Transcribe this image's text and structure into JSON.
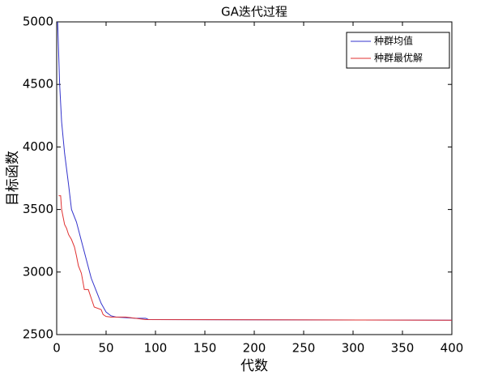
{
  "chart_data": {
    "type": "line",
    "title": "GA迭代过程",
    "x_label": "代数",
    "y_label": "目标函数",
    "series": [
      {
        "name": "种群均值",
        "color": "#3333cc",
        "x": [
          1,
          3,
          5,
          8,
          12,
          15,
          20,
          25,
          30,
          35,
          40,
          45,
          50,
          55,
          60,
          80,
          90,
          93,
          100,
          400
        ],
        "values": [
          5000,
          4500,
          4200,
          3950,
          3700,
          3500,
          3400,
          3250,
          3100,
          2950,
          2850,
          2750,
          2680,
          2650,
          2640,
          2630,
          2630,
          2620,
          2620,
          2615
        ]
      },
      {
        "name": "种群最优解",
        "color": "#e03030",
        "x": [
          2,
          4,
          5,
          8,
          10,
          12,
          15,
          18,
          20,
          22,
          25,
          28,
          32,
          35,
          38,
          45,
          47,
          50,
          55,
          70,
          90,
          400
        ],
        "values": [
          3610,
          3610,
          3500,
          3380,
          3350,
          3300,
          3260,
          3200,
          3130,
          3050,
          2990,
          2860,
          2860,
          2790,
          2720,
          2700,
          2660,
          2645,
          2640,
          2640,
          2620,
          2615
        ]
      }
    ],
    "xlim": [
      0,
      400
    ],
    "xticks": [
      0,
      50,
      100,
      150,
      200,
      250,
      300,
      350,
      400
    ],
    "ylim": [
      2500,
      5000
    ],
    "yticks": [
      2500,
      3000,
      3500,
      4000,
      4500,
      5000
    ],
    "legend": "upper-right"
  }
}
